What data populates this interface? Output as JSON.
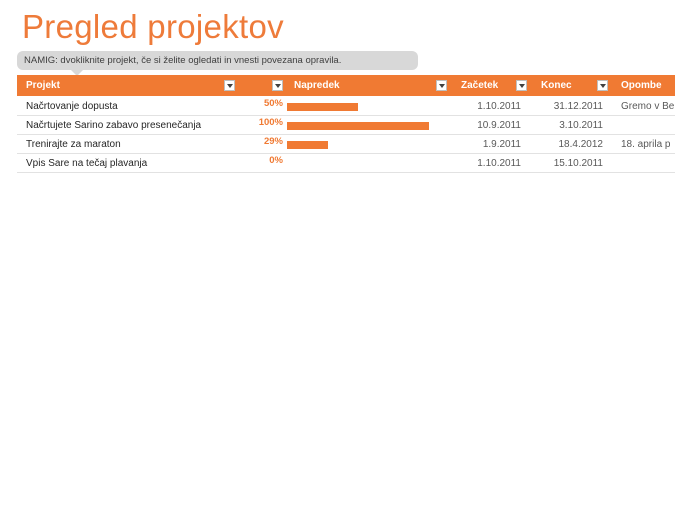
{
  "title": "Pregled projektov",
  "tip": "NAMIG: dvokliknite projekt, če si želite ogledati in vnesti povezana opravila.",
  "columns": {
    "project": "Projekt",
    "progress": "Napredek",
    "start": "Začetek",
    "end": "Konec",
    "notes": "Opombe"
  },
  "rows": [
    {
      "project": "Načrtovanje dopusta",
      "percent": "50%",
      "progress": 0.5,
      "start": "1.10.2011",
      "end": "31.12.2011",
      "notes": "Gremo v Be"
    },
    {
      "project": "Načrtujete Sarino zabavo presenečanja",
      "percent": "100%",
      "progress": 1.0,
      "start": "10.9.2011",
      "end": "3.10.2011",
      "notes": ""
    },
    {
      "project": "Trenirajte za maraton",
      "percent": "29%",
      "progress": 0.29,
      "start": "1.9.2011",
      "end": "18.4.2012",
      "notes": "18. aprila p"
    },
    {
      "project": "Vpis Sare na tečaj plavanja",
      "percent": "0%",
      "progress": 0.0,
      "start": "1.10.2011",
      "end": "15.10.2011",
      "notes": ""
    }
  ],
  "colors": {
    "accent": "#f07a33",
    "title": "#ee7b3a",
    "tip_bg": "#d8d8d8"
  }
}
